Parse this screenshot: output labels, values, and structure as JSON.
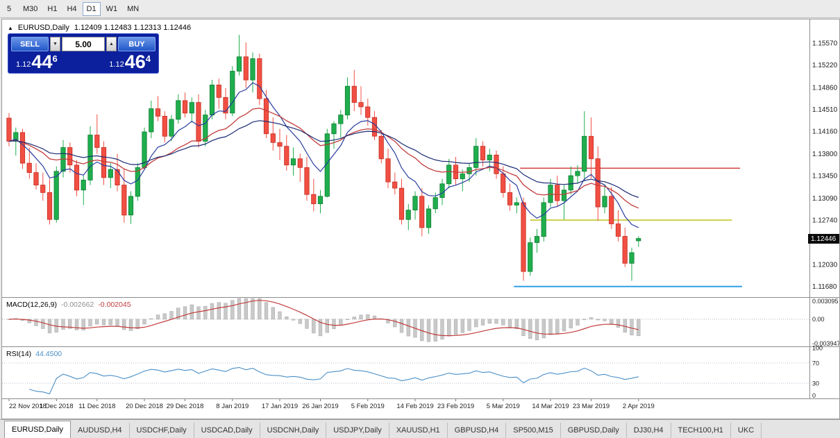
{
  "toolbar": {
    "timeframes": [
      "5",
      "M30",
      "H1",
      "H4",
      "D1",
      "W1",
      "MN"
    ],
    "active": "D1"
  },
  "chart": {
    "title": {
      "marker": "▲",
      "symbol": "EURUSD,Daily",
      "ohlc": "1.12409 1.12483 1.12313 1.12446"
    },
    "price_badge": "1.12446",
    "trade_widget": {
      "sell_label": "SELL",
      "buy_label": "BUY",
      "volume": "5.00",
      "sell": {
        "base": "1.12",
        "pips": "44",
        "point": "6"
      },
      "buy": {
        "base": "1.12",
        "pips": "46",
        "point": "4"
      }
    },
    "icons": {
      "caret_down": "▼",
      "caret_up": "▲"
    }
  },
  "chart_data": {
    "type": "candlestick",
    "symbol": "EURUSD",
    "timeframe": "Daily",
    "y_axis": {
      "min": 1.1151,
      "max": 1.1588,
      "labels": [
        "1.15570",
        "1.15220",
        "1.14860",
        "1.14510",
        "1.14160",
        "1.13800",
        "1.13450",
        "1.13090",
        "1.12740",
        "1.12030",
        "1.11680"
      ]
    },
    "x_labels": [
      {
        "i": 0,
        "label": "22 Nov 2018"
      },
      {
        "i": 7,
        "label": "1 Dec 2018"
      },
      {
        "i": 13,
        "label": "11 Dec 2018"
      },
      {
        "i": 20,
        "label": "20 Dec 2018"
      },
      {
        "i": 26,
        "label": "29 Dec 2018"
      },
      {
        "i": 33,
        "label": "8 Jan 2019"
      },
      {
        "i": 40,
        "label": "17 Jan 2019"
      },
      {
        "i": 46,
        "label": "26 Jan 2019"
      },
      {
        "i": 53,
        "label": "5 Feb 2019"
      },
      {
        "i": 60,
        "label": "14 Feb 2019"
      },
      {
        "i": 66,
        "label": "23 Feb 2019"
      },
      {
        "i": 73,
        "label": "5 Mar 2019"
      },
      {
        "i": 80,
        "label": "14 Mar 2019"
      },
      {
        "i": 86,
        "label": "23 Mar 2019"
      },
      {
        "i": 93,
        "label": "2 Apr 2019"
      }
    ],
    "ohlc": [
      [
        1.1437,
        1.1445,
        1.1392,
        1.14
      ],
      [
        1.14,
        1.1422,
        1.1377,
        1.1414
      ],
      [
        1.1414,
        1.142,
        1.1356,
        1.1365
      ],
      [
        1.1365,
        1.139,
        1.134,
        1.135
      ],
      [
        1.135,
        1.1365,
        1.1323,
        1.133
      ],
      [
        1.133,
        1.135,
        1.1305,
        1.1318
      ],
      [
        1.1318,
        1.134,
        1.1267,
        1.1275
      ],
      [
        1.1275,
        1.136,
        1.127,
        1.1352
      ],
      [
        1.1352,
        1.1402,
        1.1342,
        1.139
      ],
      [
        1.139,
        1.1398,
        1.135,
        1.1362
      ],
      [
        1.1362,
        1.137,
        1.1312,
        1.1322
      ],
      [
        1.1322,
        1.1345,
        1.1298,
        1.1338
      ],
      [
        1.1338,
        1.1424,
        1.133,
        1.141
      ],
      [
        1.141,
        1.1443,
        1.138,
        1.139
      ],
      [
        1.139,
        1.14,
        1.133,
        1.1342
      ],
      [
        1.1342,
        1.1365,
        1.1325,
        1.1355
      ],
      [
        1.1355,
        1.138,
        1.132,
        1.133
      ],
      [
        1.133,
        1.1355,
        1.127,
        1.1282
      ],
      [
        1.1282,
        1.132,
        1.1268,
        1.1312
      ],
      [
        1.1312,
        1.1365,
        1.1305,
        1.1358
      ],
      [
        1.1358,
        1.1422,
        1.1355,
        1.1415
      ],
      [
        1.1415,
        1.1465,
        1.1405,
        1.1452
      ],
      [
        1.1452,
        1.1472,
        1.1432,
        1.144
      ],
      [
        1.144,
        1.1448,
        1.1398,
        1.1408
      ],
      [
        1.1408,
        1.1442,
        1.14,
        1.1435
      ],
      [
        1.1435,
        1.1475,
        1.1428,
        1.1465
      ],
      [
        1.1465,
        1.1478,
        1.1438,
        1.1445
      ],
      [
        1.1445,
        1.147,
        1.143,
        1.1462
      ],
      [
        1.1462,
        1.1475,
        1.139,
        1.14
      ],
      [
        1.14,
        1.145,
        1.1392,
        1.1442
      ],
      [
        1.1442,
        1.1498,
        1.1435,
        1.149
      ],
      [
        1.149,
        1.15,
        1.1452,
        1.147
      ],
      [
        1.147,
        1.1485,
        1.1435,
        1.1445
      ],
      [
        1.1445,
        1.152,
        1.144,
        1.1512
      ],
      [
        1.1512,
        1.157,
        1.1505,
        1.1535
      ],
      [
        1.1535,
        1.1558,
        1.1485,
        1.1498
      ],
      [
        1.1498,
        1.1542,
        1.1478,
        1.1532
      ],
      [
        1.1532,
        1.154,
        1.1458,
        1.1468
      ],
      [
        1.1468,
        1.1482,
        1.1405,
        1.1412
      ],
      [
        1.1412,
        1.1438,
        1.1385,
        1.1398
      ],
      [
        1.1398,
        1.142,
        1.137,
        1.1392
      ],
      [
        1.1392,
        1.141,
        1.1353,
        1.1362
      ],
      [
        1.1362,
        1.139,
        1.1345,
        1.1372
      ],
      [
        1.1372,
        1.138,
        1.1335,
        1.1358
      ],
      [
        1.1358,
        1.1375,
        1.1305,
        1.1315
      ],
      [
        1.1315,
        1.134,
        1.1288,
        1.13
      ],
      [
        1.13,
        1.1322,
        1.1285,
        1.1312
      ],
      [
        1.1312,
        1.142,
        1.131,
        1.1412
      ],
      [
        1.1412,
        1.1432,
        1.1388,
        1.1428
      ],
      [
        1.1428,
        1.145,
        1.1405,
        1.1442
      ],
      [
        1.1442,
        1.1502,
        1.1435,
        1.1488
      ],
      [
        1.1488,
        1.1514,
        1.1448,
        1.1462
      ],
      [
        1.1462,
        1.1488,
        1.1442,
        1.1455
      ],
      [
        1.1455,
        1.1468,
        1.1425,
        1.1438
      ],
      [
        1.1438,
        1.1448,
        1.1402,
        1.1408
      ],
      [
        1.1408,
        1.1418,
        1.1365,
        1.1372
      ],
      [
        1.1372,
        1.1388,
        1.1325,
        1.1335
      ],
      [
        1.1335,
        1.135,
        1.1315,
        1.1325
      ],
      [
        1.1325,
        1.134,
        1.1267,
        1.1275
      ],
      [
        1.1275,
        1.13,
        1.1258,
        1.129
      ],
      [
        1.129,
        1.132,
        1.1275,
        1.1312
      ],
      [
        1.1312,
        1.1325,
        1.1248,
        1.1262
      ],
      [
        1.1262,
        1.1298,
        1.1252,
        1.1292
      ],
      [
        1.1292,
        1.1318,
        1.1285,
        1.131
      ],
      [
        1.131,
        1.134,
        1.1298,
        1.1332
      ],
      [
        1.1332,
        1.1372,
        1.1325,
        1.1362
      ],
      [
        1.1362,
        1.1375,
        1.133,
        1.134
      ],
      [
        1.134,
        1.1355,
        1.132,
        1.1348
      ],
      [
        1.1348,
        1.1365,
        1.1335,
        1.1358
      ],
      [
        1.1358,
        1.1405,
        1.1345,
        1.1392
      ],
      [
        1.1392,
        1.14,
        1.136,
        1.137
      ],
      [
        1.137,
        1.1388,
        1.1352,
        1.1378
      ],
      [
        1.1378,
        1.1385,
        1.134,
        1.1348
      ],
      [
        1.1348,
        1.136,
        1.131,
        1.1318
      ],
      [
        1.1318,
        1.1332,
        1.1289,
        1.1298
      ],
      [
        1.1298,
        1.131,
        1.1285,
        1.1302
      ],
      [
        1.1302,
        1.131,
        1.1177,
        1.1192
      ],
      [
        1.1192,
        1.1246,
        1.1185,
        1.1238
      ],
      [
        1.1238,
        1.126,
        1.1222,
        1.1248
      ],
      [
        1.1248,
        1.131,
        1.124,
        1.1302
      ],
      [
        1.1302,
        1.134,
        1.1295,
        1.133
      ],
      [
        1.133,
        1.1345,
        1.1295,
        1.1305
      ],
      [
        1.1305,
        1.133,
        1.1275,
        1.1322
      ],
      [
        1.1322,
        1.136,
        1.1315,
        1.1345
      ],
      [
        1.1345,
        1.1362,
        1.1332,
        1.1352
      ],
      [
        1.1352,
        1.1448,
        1.1336,
        1.1408
      ],
      [
        1.1408,
        1.1438,
        1.1341,
        1.1372
      ],
      [
        1.1372,
        1.1392,
        1.1273,
        1.1295
      ],
      [
        1.1295,
        1.133,
        1.1285,
        1.1312
      ],
      [
        1.1312,
        1.1327,
        1.126,
        1.1268
      ],
      [
        1.1268,
        1.129,
        1.124,
        1.1248
      ],
      [
        1.1248,
        1.1262,
        1.1199,
        1.1205
      ],
      [
        1.1205,
        1.123,
        1.1177,
        1.1222
      ],
      [
        1.12409,
        1.12483,
        1.12313,
        1.12446
      ]
    ],
    "h_lines": [
      {
        "price": 1.1357,
        "from": 75.5,
        "to": 108,
        "color": "#d03434",
        "width": 1.4
      },
      {
        "price": 1.1274,
        "from": 77,
        "to": 106.8,
        "color": "#b9bd00",
        "width": 1.4
      },
      {
        "price": 1.1168,
        "from": 74.6,
        "to": 108.3,
        "color": "#2f9fe8",
        "width": 2
      }
    ],
    "moving_averages": [
      {
        "period": 8,
        "color": "#283c9e",
        "width": 1.2
      },
      {
        "period": 21,
        "color": "#c23b3b",
        "width": 1.3
      },
      {
        "period": 34,
        "color": "#1b2a74",
        "width": 1.2
      }
    ],
    "macd": {
      "label": "MACD(12,26,9)",
      "value_main": "-0.002662",
      "value_signal": "-0.002045",
      "fast": 12,
      "slow": 26,
      "signal": 9,
      "max": 0.003095,
      "min": -0.003947,
      "scale": [
        "0.003095",
        "0.00",
        "-0.003947"
      ]
    },
    "rsi": {
      "label": "RSI(14)",
      "value": "44.4500",
      "period": 14,
      "levels": [
        70,
        30
      ],
      "scale": [
        100,
        70,
        30,
        0
      ]
    },
    "colors": {
      "bull": "#1fae4d",
      "bull_border": "#0f7d33",
      "bear": "#f14f43",
      "bear_border": "#c62e22",
      "macd_hist": "#c9c9c9",
      "macd_hist_border": "#a5a5a5",
      "macd_signal": "#c23b3b",
      "rsi": "#4a8fc7"
    }
  },
  "tabbar": {
    "active_index": 0,
    "tabs": [
      "EURUSD,Daily",
      "AUDUSD,H4",
      "USDCHF,Daily",
      "USDCAD,Daily",
      "USDCNH,Daily",
      "USDJPY,Daily",
      "XAUUSD,H1",
      "GBPUSD,H4",
      "SP500,M15",
      "GBPUSD,Daily",
      "DJ30,H4",
      "TECH100,H1",
      "UKC"
    ]
  }
}
